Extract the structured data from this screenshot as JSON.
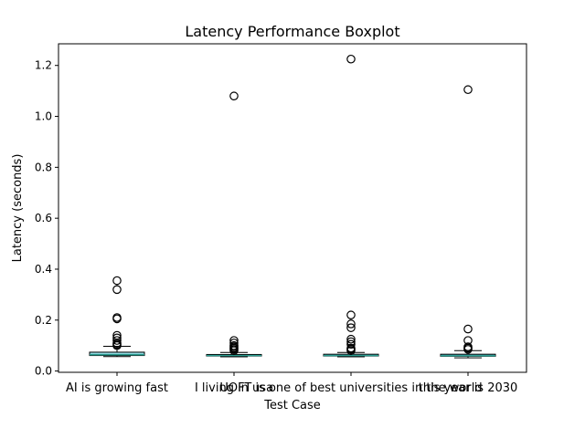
{
  "chart_data": {
    "type": "box",
    "title": "Latency Performance Boxplot",
    "xlabel": "Test Case",
    "ylabel": "Latency (seconds)",
    "ylim": [
      -0.005,
      1.285
    ],
    "yticks": [
      0.0,
      0.2,
      0.4,
      0.6,
      0.8,
      1.0,
      1.2
    ],
    "ytick_labels": [
      "0.0",
      "0.2",
      "0.4",
      "0.6",
      "0.8",
      "1.0",
      "1.2"
    ],
    "grid": false,
    "colors": {
      "box_fill_1": "#8fd8e0",
      "box_fill_2": "#5fb8c6",
      "median": "#2a9d8f",
      "outline": "#000000"
    },
    "boxes": [
      {
        "category": "AI is growing fast",
        "whisker_low": 0.057,
        "q1": 0.061,
        "median": 0.064,
        "q3": 0.074,
        "whisker_high": 0.097,
        "outliers": [
          0.355,
          0.32,
          0.21,
          0.205,
          0.14,
          0.13,
          0.12,
          0.11,
          0.105,
          0.1
        ]
      },
      {
        "category": "I living in usa",
        "whisker_low": 0.056,
        "q1": 0.059,
        "median": 0.061,
        "q3": 0.065,
        "whisker_high": 0.073,
        "outliers": [
          1.08,
          0.12,
          0.11,
          0.1,
          0.095,
          0.09,
          0.085,
          0.08
        ]
      },
      {
        "category": "UOFT is one of best universities in the world",
        "whisker_low": 0.056,
        "q1": 0.059,
        "median": 0.061,
        "q3": 0.066,
        "whisker_high": 0.073,
        "outliers": [
          1.225,
          0.22,
          0.185,
          0.17,
          0.125,
          0.115,
          0.105,
          0.09,
          0.085,
          0.08
        ]
      },
      {
        "category": "this year is 2030",
        "whisker_low": 0.052,
        "q1": 0.058,
        "median": 0.06,
        "q3": 0.066,
        "whisker_high": 0.08,
        "outliers": [
          1.105,
          0.165,
          0.12,
          0.095,
          0.09,
          0.085
        ]
      }
    ]
  }
}
